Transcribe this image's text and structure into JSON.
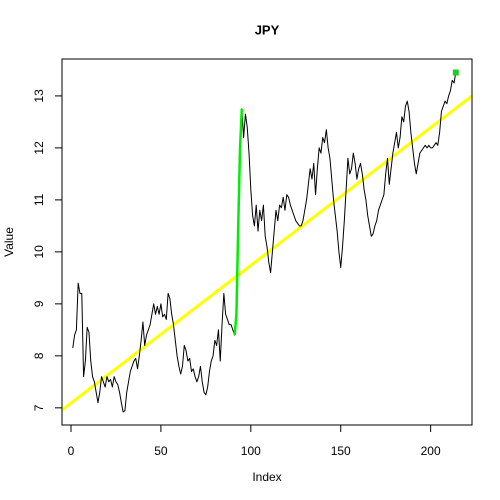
{
  "chart_data": {
    "type": "line",
    "title": "JPY",
    "xlabel": "Index",
    "ylabel": "Value",
    "xlim": [
      -5,
      223
    ],
    "ylim": [
      6.67,
      13.71
    ],
    "xticks": [
      0,
      50,
      100,
      150,
      200
    ],
    "yticks": [
      7,
      8,
      9,
      10,
      11,
      12,
      13
    ],
    "trend": {
      "color": "#ffff00",
      "intercept": 7.09,
      "slope": 0.0265
    },
    "series": [
      {
        "style": "line",
        "color": "#000000",
        "x": [
          1,
          2,
          3,
          4,
          5,
          6,
          7,
          8,
          9,
          10,
          11,
          12,
          13,
          14,
          15,
          16,
          17,
          18,
          19,
          20,
          21,
          22,
          23,
          24,
          25,
          26,
          27,
          28,
          29,
          30,
          31,
          32,
          33,
          34,
          35,
          36,
          37,
          38,
          39,
          40,
          41,
          42,
          43,
          44,
          45,
          46,
          47,
          48,
          49,
          50,
          51,
          52,
          53,
          54,
          55,
          56,
          57,
          58,
          59,
          60,
          61,
          62,
          63,
          64,
          65,
          66,
          67,
          68,
          69,
          70,
          71,
          72,
          73,
          74,
          75,
          76,
          77,
          78,
          79,
          80,
          81,
          82,
          83,
          84,
          85,
          86,
          87,
          88,
          89,
          90,
          91,
          92,
          93,
          94,
          95,
          96,
          97,
          98,
          99,
          100,
          101,
          102,
          103,
          104,
          105,
          106,
          107,
          108,
          109,
          110,
          111,
          112,
          113,
          114,
          115,
          116,
          117,
          118,
          119,
          120,
          121,
          122,
          123,
          124,
          125,
          126,
          127,
          128,
          129,
          130,
          131,
          132,
          133,
          134,
          135,
          136,
          137,
          138,
          139,
          140,
          141,
          142,
          143,
          144,
          145,
          146,
          147,
          148,
          149,
          150,
          151,
          152,
          153,
          154,
          155,
          156,
          157,
          158,
          159,
          160,
          161,
          162,
          163,
          164,
          165,
          166,
          167,
          168,
          169,
          170,
          171,
          172,
          173,
          174,
          175,
          176,
          177,
          178,
          179,
          180,
          181,
          182,
          183,
          184,
          185,
          186,
          187,
          188,
          189,
          190,
          191,
          192,
          193,
          194,
          195,
          196,
          197,
          198,
          199,
          200,
          201,
          202,
          203,
          204,
          205,
          206,
          207,
          208,
          209,
          210,
          211,
          212,
          213,
          214
        ],
        "values": [
          8.15,
          8.4,
          8.5,
          9.4,
          9.2,
          9.2,
          7.6,
          7.9,
          8.55,
          8.45,
          7.9,
          7.6,
          7.5,
          7.3,
          7.1,
          7.3,
          7.6,
          7.5,
          7.4,
          7.6,
          7.5,
          7.55,
          7.4,
          7.6,
          7.5,
          7.45,
          7.3,
          7.1,
          6.92,
          6.95,
          7.3,
          7.5,
          7.7,
          7.8,
          7.9,
          7.95,
          7.75,
          8.0,
          8.3,
          8.65,
          8.2,
          8.4,
          8.5,
          8.6,
          8.8,
          9.0,
          8.8,
          8.95,
          8.8,
          9.0,
          8.75,
          8.8,
          8.7,
          9.2,
          9.1,
          8.8,
          8.6,
          8.3,
          8.0,
          7.8,
          7.65,
          7.8,
          8.2,
          8.1,
          7.9,
          7.95,
          7.7,
          7.75,
          7.6,
          7.5,
          7.6,
          7.8,
          7.5,
          7.3,
          7.25,
          7.4,
          7.7,
          7.9,
          8.0,
          8.3,
          8.2,
          8.5,
          7.9,
          8.6,
          9.2,
          8.8,
          8.7,
          8.6,
          8.6,
          8.5,
          8.4,
          8.8,
          10.5,
          12.0,
          12.75,
          12.2,
          12.65,
          12.4,
          11.9,
          11.2,
          10.7,
          10.5,
          10.9,
          10.4,
          10.8,
          10.6,
          10.9,
          10.3,
          10.1,
          9.8,
          9.6,
          10.0,
          10.4,
          10.8,
          10.6,
          10.9,
          10.85,
          11.05,
          10.8,
          11.1,
          11.05,
          10.9,
          10.8,
          10.7,
          10.6,
          10.55,
          10.5,
          10.5,
          10.6,
          10.8,
          11.0,
          11.3,
          11.6,
          11.4,
          11.7,
          11.1,
          11.6,
          12.0,
          11.9,
          12.2,
          12.1,
          12.35,
          12.0,
          11.8,
          11.4,
          11.0,
          10.7,
          10.4,
          10.0,
          9.7,
          10.1,
          10.6,
          11.2,
          11.8,
          11.5,
          11.6,
          11.9,
          11.7,
          11.4,
          11.6,
          11.7,
          11.5,
          11.2,
          11.0,
          10.7,
          10.5,
          10.3,
          10.35,
          10.5,
          10.6,
          10.8,
          10.9,
          11.0,
          11.1,
          11.5,
          11.8,
          11.3,
          11.6,
          11.9,
          12.1,
          12.3,
          12.0,
          12.2,
          12.6,
          12.5,
          12.8,
          12.9,
          12.7,
          12.3,
          12.0,
          11.7,
          11.5,
          11.7,
          11.9,
          11.95,
          12.0,
          12.05,
          12.0,
          12.05,
          12.0,
          12.0,
          12.05,
          12.1,
          12.05,
          12.3,
          12.7,
          12.8,
          12.9,
          12.85,
          13.0,
          13.1,
          13.3,
          13.25,
          13.45
        ]
      },
      {
        "style": "line",
        "color": "#00ee00",
        "x": [
          91,
          92,
          93,
          94,
          95
        ],
        "values": [
          8.4,
          8.8,
          10.5,
          12.0,
          12.75
        ]
      },
      {
        "style": "point",
        "color": "#22cc22",
        "x": [
          214
        ],
        "values": [
          13.45
        ]
      }
    ]
  }
}
